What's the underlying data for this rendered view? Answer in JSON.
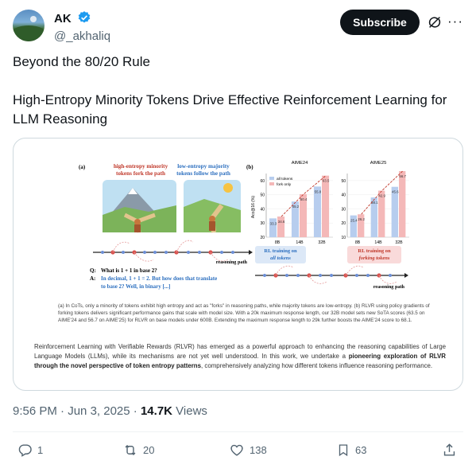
{
  "author": {
    "display_name": "AK",
    "handle": "@_akhaliq"
  },
  "header": {
    "subscribe_label": "Subscribe",
    "more_label": "···"
  },
  "tweet": {
    "text": "Beyond the 80/20 Rule\n\nHigh-Entropy Minority Tokens Drive Effective Reinforcement Learning for LLM Reasoning"
  },
  "figure": {
    "panel_a_label": "(a)",
    "panel_b_label": "(b)",
    "minority_title_line1": "high-entropy minority",
    "minority_title_line2": "tokens fork the path",
    "majority_title_line1": "low-entropy majority",
    "majority_title_line2": "tokens follow the path",
    "reasoning_path_label": "reasoning path",
    "q_label": "Q:",
    "q_text": "What is 1 + 1 in base 2?",
    "a_label": "A:",
    "a_text_line1": "In decimal, 1 + 1 = 2. But how does that translate",
    "a_text_line2": "to base 2? Well, in binary [...]",
    "aime24_title": "AIME24",
    "aime25_title": "AIME25",
    "legend_all_tokens": "all tokens",
    "legend_fork_only": "fork only",
    "ylabel": "Acc@16 (%)",
    "aime24_yticks": [
      "20",
      "30",
      "40",
      "50",
      "60"
    ],
    "aime25_yticks": [
      "10",
      "20",
      "30",
      "40",
      "50"
    ],
    "xticks": [
      "8B",
      "14B",
      "32B"
    ],
    "rl_all_line1": "RL training on",
    "rl_all_line2": "all tokens",
    "rl_fork_line1": "RL training on",
    "rl_fork_line2": "forking tokens",
    "reasoning_path_label_b": "reasoning path",
    "colors": {
      "all_tokens": "#b7cdee",
      "fork_only": "#f4b8b8",
      "trend": "#c0392b"
    }
  },
  "chart_data": [
    {
      "type": "bar",
      "title": "AIME24",
      "ylabel": "Acc@16 (%)",
      "ylim": [
        20,
        65
      ],
      "categories": [
        "8B",
        "14B",
        "32B"
      ],
      "series": [
        {
          "name": "all tokens",
          "values": [
            33.3,
            45.2,
            55.8
          ]
        },
        {
          "name": "fork only",
          "values": [
            34.6,
            50.4,
            63.5
          ]
        }
      ],
      "value_labels": [
        [
          "33.3",
          "45.2",
          "55.8"
        ],
        [
          "34.6",
          "50.4",
          "63.5"
        ]
      ]
    },
    {
      "type": "bar",
      "title": "AIME25",
      "ylim": [
        10,
        55
      ],
      "categories": [
        "8B",
        "14B",
        "32B"
      ],
      "series": [
        {
          "name": "all tokens",
          "values": [
            25.4,
            38.1,
            45.6
          ]
        },
        {
          "name": "fork only",
          "values": [
            26.2,
            42.9,
            56.7
          ]
        }
      ],
      "value_labels": [
        [
          "25.4",
          "38.1",
          "45.6"
        ],
        [
          "26.2",
          "42.9",
          "56.7"
        ]
      ]
    }
  ],
  "paper": {
    "caption": "(a) In CoTs, only a minority of tokens exhibit high entropy and act as \"forks\" in reasoning paths, while majority tokens are low-entropy. (b) RLVR using policy gradients of forking tokens delivers significant performance gains that scale with model size. With a 20k maximum response length, our 32B model sets new SoTA scores (63.5 on AIME'24 and 56.7 on AIME'25) for RLVR on base models under 600B. Extending the maximum response length to 29k further boosts the AIME'24 score to 68.1.",
    "abstract_part1": "Reinforcement Learning with Verifiable Rewards (RLVR) has emerged as a powerful approach to enhancing the reasoning capabilities of Large Language Models (LLMs), while its mechanisms are not yet well understood. In this work, we undertake a ",
    "abstract_bold": "pioneering exploration of RLVR through the novel perspective of token entropy patterns",
    "abstract_part2": ", comprehensively analyzing how different tokens influence reasoning performance."
  },
  "meta": {
    "time": "9:56 PM",
    "separator1": " · ",
    "date": "Jun 3, 2025",
    "separator2": " · ",
    "views_count": "14.7K",
    "views_label": " Views"
  },
  "actions": {
    "replies": "1",
    "reposts": "20",
    "likes": "138",
    "bookmarks": "63"
  }
}
